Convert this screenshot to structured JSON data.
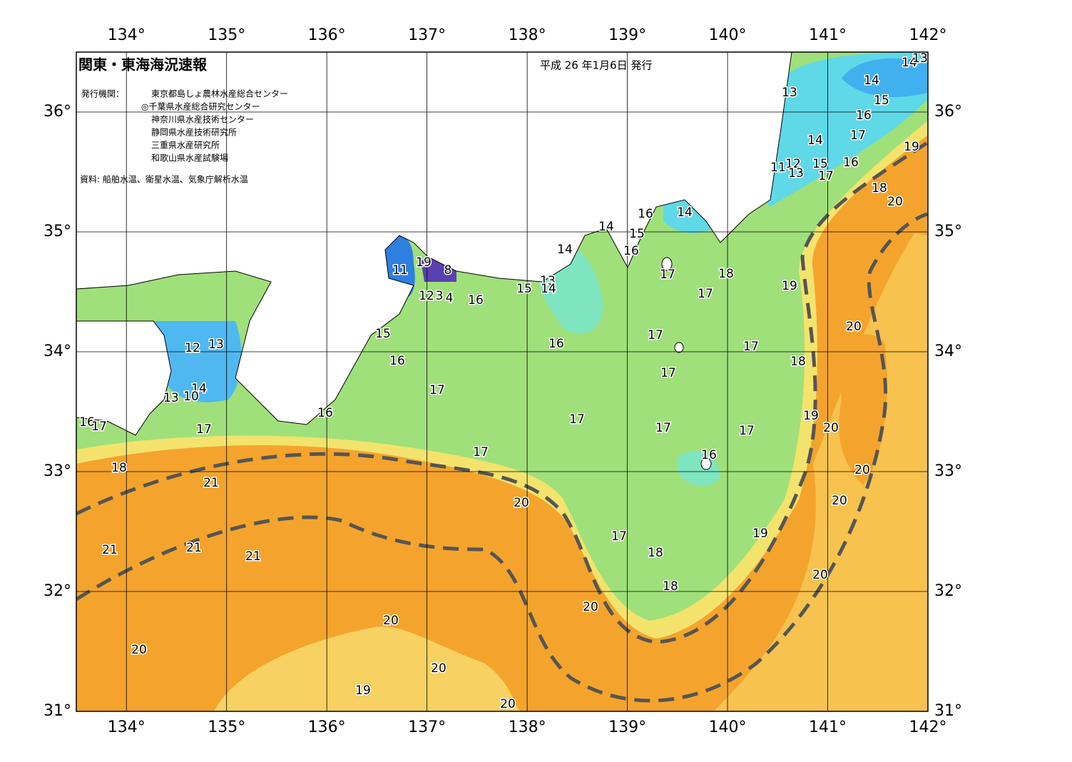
{
  "header": {
    "title": "関東・東海海況速報",
    "issue_date": "平成 26 年1月6日 発行",
    "agencies_label": "発行機関：",
    "agencies": [
      "東京都島しょ農林水産総合センター",
      "◎千葉県水産総合研究センター",
      "神奈川県水産技術センター",
      "静岡県水産技術研究所",
      "三重県水産研究所",
      "和歌山県水産試験場"
    ],
    "source": "資料: 船舶水温、衛星水温、気象庁解析水温"
  },
  "map": {
    "xlim": [
      133.5,
      142
    ],
    "ylim": [
      31,
      36.5
    ],
    "lon_ticks": [
      {
        "value": 134,
        "label": "134°"
      },
      {
        "value": 135,
        "label": "135°"
      },
      {
        "value": 136,
        "label": "136°"
      },
      {
        "value": 137,
        "label": "137°"
      },
      {
        "value": 138,
        "label": "138°"
      },
      {
        "value": 139,
        "label": "139°"
      },
      {
        "value": 140,
        "label": "140°"
      },
      {
        "value": 141,
        "label": "141°"
      },
      {
        "value": 142,
        "label": "142°"
      }
    ],
    "lat_ticks": [
      {
        "value": 31,
        "label": "31°"
      },
      {
        "value": 32,
        "label": "32°"
      },
      {
        "value": 33,
        "label": "33°"
      },
      {
        "value": 34,
        "label": "34°"
      },
      {
        "value": 35,
        "label": "35°"
      },
      {
        "value": 36,
        "label": "36°"
      }
    ],
    "contour_labels": [
      13,
      14,
      13,
      14,
      15,
      16,
      17,
      14,
      19,
      16,
      15,
      17,
      11,
      12,
      13,
      18,
      20,
      16,
      14,
      14,
      15,
      16,
      14,
      18,
      17,
      19,
      17,
      13,
      15,
      14,
      16,
      11,
      19,
      8,
      12,
      3,
      4,
      15,
      16,
      17,
      20,
      17,
      18,
      16,
      12,
      13,
      17,
      17,
      14,
      13,
      10,
      16,
      19,
      17,
      17,
      20,
      17,
      16,
      17,
      17,
      17,
      16,
      20,
      18,
      21,
      20,
      20,
      19,
      17,
      21,
      21,
      21,
      18,
      20,
      18,
      20,
      20,
      20,
      20,
      19,
      20
    ]
  }
}
